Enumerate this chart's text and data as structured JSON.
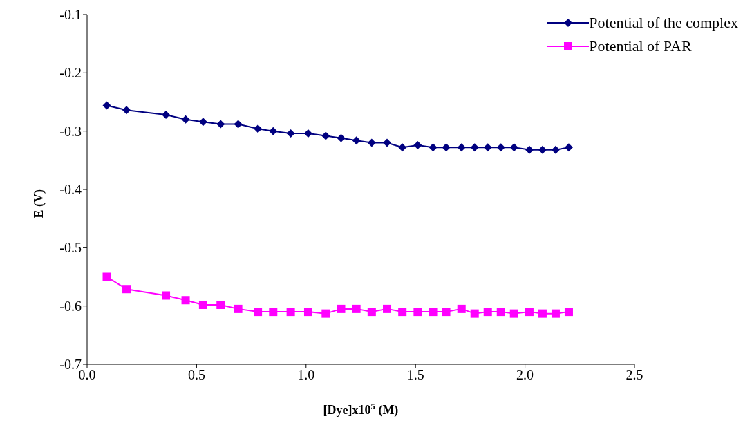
{
  "chart_data": {
    "type": "line",
    "xlabel": "[Dye]x10$^{5}$ (M)",
    "ylabel": "E (V)",
    "x": [
      0.09,
      0.18,
      0.36,
      0.45,
      0.53,
      0.61,
      0.69,
      0.78,
      0.85,
      0.93,
      1.01,
      1.09,
      1.16,
      1.23,
      1.3,
      1.37,
      1.44,
      1.51,
      1.58,
      1.64,
      1.71,
      1.77,
      1.83,
      1.89,
      1.95,
      2.02,
      2.08,
      2.14,
      2.2
    ],
    "series": [
      {
        "name": "Potential of the complex",
        "color": "#000080",
        "marker": "diamond",
        "values": [
          -0.256,
          -0.264,
          -0.272,
          -0.28,
          -0.284,
          -0.288,
          -0.288,
          -0.296,
          -0.3,
          -0.304,
          -0.304,
          -0.308,
          -0.312,
          -0.316,
          -0.32,
          -0.32,
          -0.328,
          -0.324,
          -0.328,
          -0.328,
          -0.328,
          -0.328,
          -0.328,
          -0.328,
          -0.328,
          -0.332,
          -0.332,
          -0.332,
          -0.328
        ]
      },
      {
        "name": "Potential of PAR",
        "color": "#ff00ff",
        "marker": "square",
        "values": [
          -0.55,
          -0.571,
          -0.582,
          -0.59,
          -0.598,
          -0.598,
          -0.605,
          -0.61,
          -0.61,
          -0.61,
          -0.61,
          -0.613,
          -0.605,
          -0.605,
          -0.61,
          -0.605,
          -0.61,
          -0.61,
          -0.61,
          -0.61,
          -0.605,
          -0.613,
          -0.61,
          -0.61,
          -0.613,
          -0.61,
          -0.613,
          -0.613,
          -0.61
        ]
      }
    ],
    "xlim": [
      0,
      2.5
    ],
    "xticks": [
      {
        "value": 0,
        "label": "0.0"
      },
      0.5,
      {
        "value": 1,
        "label": "1.0"
      },
      1.5,
      {
        "value": 2,
        "label": "2.0"
      },
      2.5
    ],
    "ylim": [
      -0.7,
      -0.1
    ],
    "yticks": [
      -0.7,
      -0.6,
      -0.5,
      -0.4,
      -0.3,
      -0.2,
      -0.1
    ],
    "legend": "top right"
  }
}
